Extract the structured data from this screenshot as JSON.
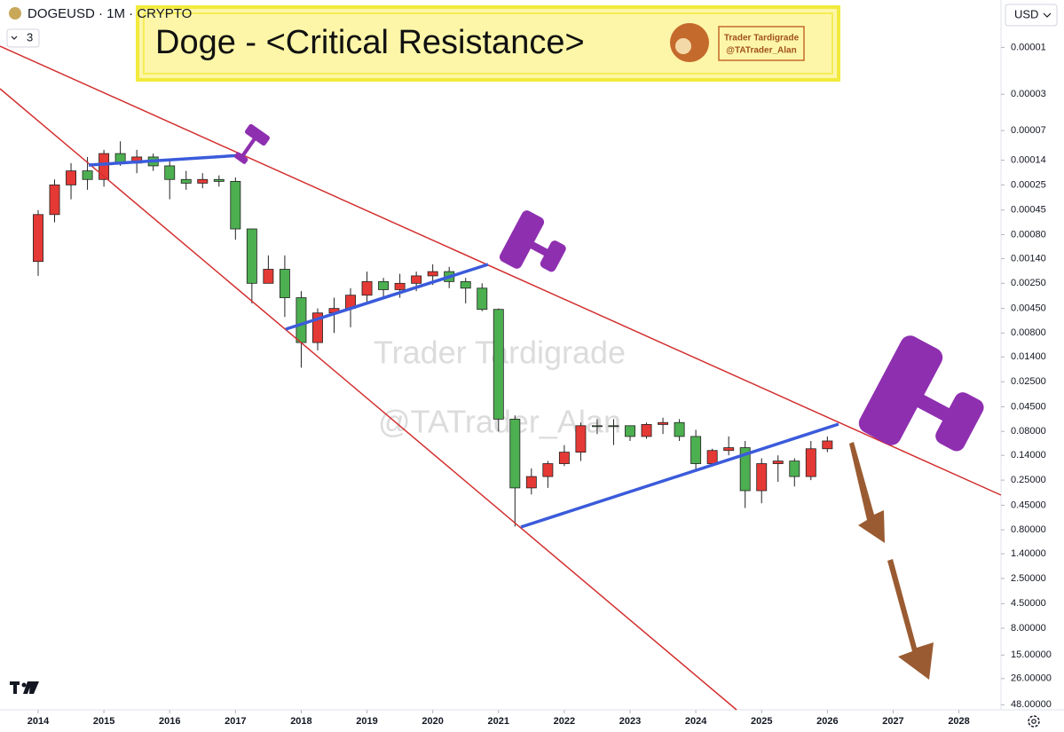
{
  "chart_data": {
    "type": "candlestick",
    "symbol": "DOGEUSD · 1M · CRYPTO",
    "indicator_count": "3",
    "title": "Doge - <Critical Resistance>",
    "badge": [
      "Trader Tardigrade",
      "@TATrader_Alan"
    ],
    "watermark": [
      "Trader Tardigrade",
      "@TATrader_Alan"
    ],
    "currency": "USD",
    "log_scale": true,
    "inverted": true,
    "up_color": "#4caf50",
    "down_color": "#e53935",
    "xlim": [
      2013.42,
      2028.64
    ],
    "xticks": [
      2014,
      2015,
      2016,
      2017,
      2018,
      2019,
      2020,
      2021,
      2022,
      2023,
      2024,
      2025,
      2026,
      2027,
      2028
    ],
    "ylim": [
      3.3e-06,
      54
    ],
    "yticks": [
      1e-05,
      3e-05,
      7e-05,
      0.00014,
      0.00025,
      0.00045,
      {
        "value": 0.0008,
        "label": "0.00080"
      },
      {
        "value": 0.0014,
        "label": "0.00140"
      },
      {
        "value": 0.0025,
        "label": "0.00250"
      },
      {
        "value": 0.0045,
        "label": "0.00450"
      },
      {
        "value": 0.008,
        "label": "0.00800"
      },
      {
        "value": 0.014,
        "label": "0.01400"
      },
      {
        "value": 0.025,
        "label": "0.02500"
      },
      {
        "value": 0.045,
        "label": "0.04500"
      },
      {
        "value": 0.08,
        "label": "0.08000"
      },
      {
        "value": 0.14,
        "label": "0.14000"
      },
      {
        "value": 0.25,
        "label": "0.25000"
      },
      {
        "value": 0.45,
        "label": "0.45000"
      },
      {
        "value": 0.8,
        "label": "0.80000"
      },
      {
        "value": 1.4,
        "label": "1.40000"
      },
      {
        "value": 2.5,
        "label": "2.50000"
      },
      {
        "value": 4.5,
        "label": "4.50000"
      },
      {
        "value": 8,
        "label": "8.00000"
      },
      {
        "value": 15,
        "label": "15.00000"
      },
      {
        "value": 26,
        "label": "26.00000"
      },
      {
        "value": 48,
        "label": "48.00000"
      }
    ],
    "x": [
      2014.0,
      2014.25,
      2014.5,
      2014.75,
      2015.0,
      2015.25,
      2015.5,
      2015.75,
      2016.0,
      2016.25,
      2016.5,
      2016.75,
      2017.0,
      2017.25,
      2017.5,
      2017.75,
      2018.0,
      2018.25,
      2018.5,
      2018.75,
      2019.0,
      2019.25,
      2019.5,
      2019.75,
      2020.0,
      2020.25,
      2020.5,
      2020.75,
      2021.0,
      2021.25,
      2021.5,
      2021.75,
      2022.0,
      2022.25,
      2022.5,
      2022.75,
      2023.0,
      2023.25,
      2023.5,
      2023.75,
      2024.0,
      2024.25,
      2024.5,
      2024.75,
      2025.0,
      2025.25,
      2025.5,
      2025.75,
      2026.0
    ],
    "open": [
      0.0015,
      0.0005,
      0.00025,
      0.00018,
      0.00022,
      0.00012,
      0.00015,
      0.00013,
      0.00016,
      0.00022,
      0.00024,
      0.00022,
      0.00023,
      0.0007,
      0.0025,
      0.0018,
      0.0035,
      0.01,
      0.005,
      0.0045,
      0.0033,
      0.0024,
      0.0029,
      0.0025,
      0.0021,
      0.0019,
      0.0024,
      0.0028,
      0.0046,
      0.06,
      0.3,
      0.23,
      0.17,
      0.13,
      0.07,
      0.07,
      0.07,
      0.09,
      0.068,
      0.065,
      0.09,
      0.17,
      0.125,
      0.117,
      0.32,
      0.17,
      0.16,
      0.23,
      0.12
    ],
    "high": [
      0.0021,
      0.0006,
      0.00035,
      0.00028,
      0.00026,
      0.00016,
      0.00019,
      0.00018,
      0.00035,
      0.00028,
      0.00027,
      0.00026,
      0.0009,
      0.004,
      0.0025,
      0.0055,
      0.018,
      0.012,
      0.008,
      0.007,
      0.004,
      0.0035,
      0.0035,
      0.003,
      0.0026,
      0.0028,
      0.004,
      0.0048,
      0.08,
      0.74,
      0.35,
      0.3,
      0.18,
      0.16,
      0.085,
      0.11,
      0.1,
      0.095,
      0.085,
      0.1,
      0.2,
      0.18,
      0.14,
      0.48,
      0.43,
      0.26,
      0.29,
      0.25,
      0.13
    ],
    "low": [
      0.00045,
      0.00022,
      0.00015,
      0.00013,
      0.00011,
      9e-05,
      0.00011,
      0.00012,
      0.00014,
      0.00018,
      0.00019,
      0.0002,
      0.00021,
      0.0007,
      0.0013,
      0.0013,
      0.003,
      0.0045,
      0.0035,
      0.0028,
      0.0019,
      0.0022,
      0.002,
      0.0019,
      0.0016,
      0.0017,
      0.0022,
      0.0025,
      0.0045,
      0.055,
      0.19,
      0.16,
      0.11,
      0.065,
      0.06,
      0.06,
      0.07,
      0.065,
      0.058,
      0.06,
      0.077,
      0.12,
      0.09,
      0.1,
      0.15,
      0.14,
      0.15,
      0.1,
      0.09
    ],
    "close": [
      0.0005,
      0.00025,
      0.00018,
      0.00022,
      0.00012,
      0.00015,
      0.00013,
      0.00016,
      0.00022,
      0.00024,
      0.00022,
      0.00023,
      0.0007,
      0.0025,
      0.0018,
      0.0035,
      0.01,
      0.005,
      0.0045,
      0.0033,
      0.0024,
      0.0029,
      0.0025,
      0.0021,
      0.0019,
      0.0024,
      0.0028,
      0.0046,
      0.06,
      0.3,
      0.23,
      0.17,
      0.13,
      0.07,
      0.07,
      0.07,
      0.09,
      0.068,
      0.065,
      0.09,
      0.17,
      0.125,
      0.117,
      0.32,
      0.17,
      0.16,
      0.23,
      0.12,
      0.1
    ]
  }
}
